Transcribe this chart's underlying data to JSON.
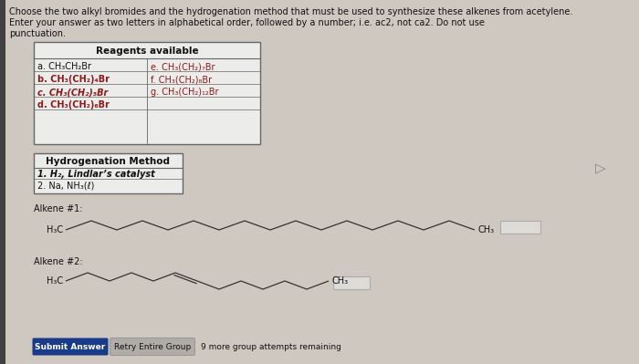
{
  "bg_color": "#cec8c0",
  "title_line1": "Choose the two alkyl bromides and the hydrogenation method that must be used to synthesize these alkenes from acetylene.",
  "title_line2": "Enter your answer as two letters in alphabetical order, followed by a number; i.e. ac2, not ca2. Do not use",
  "title_line3": "punctuation.",
  "reagents_header": "Reagents available",
  "hydro_header": "Hydrogenation Method",
  "hydro_method1": "1. H₂, Lindlar’s catalyst",
  "hydro_method2": "2. Na, NH₃(ℓ)",
  "alkene1_label": "Alkene #1:",
  "alkene2_label": "Alkene #2:",
  "submit_btn": "Submit Answer",
  "retry_btn": "Retry Entire Group",
  "attempts_text": "9 more group attempts remaining",
  "text_color": "#111111",
  "dark_red": "#8b1a1a",
  "box_bg": "#ececea",
  "btn_submit_color": "#1a3a8a",
  "btn_retry_color": "#b0ada8",
  "left_bar_color": "#404040",
  "border_color": "#666666"
}
